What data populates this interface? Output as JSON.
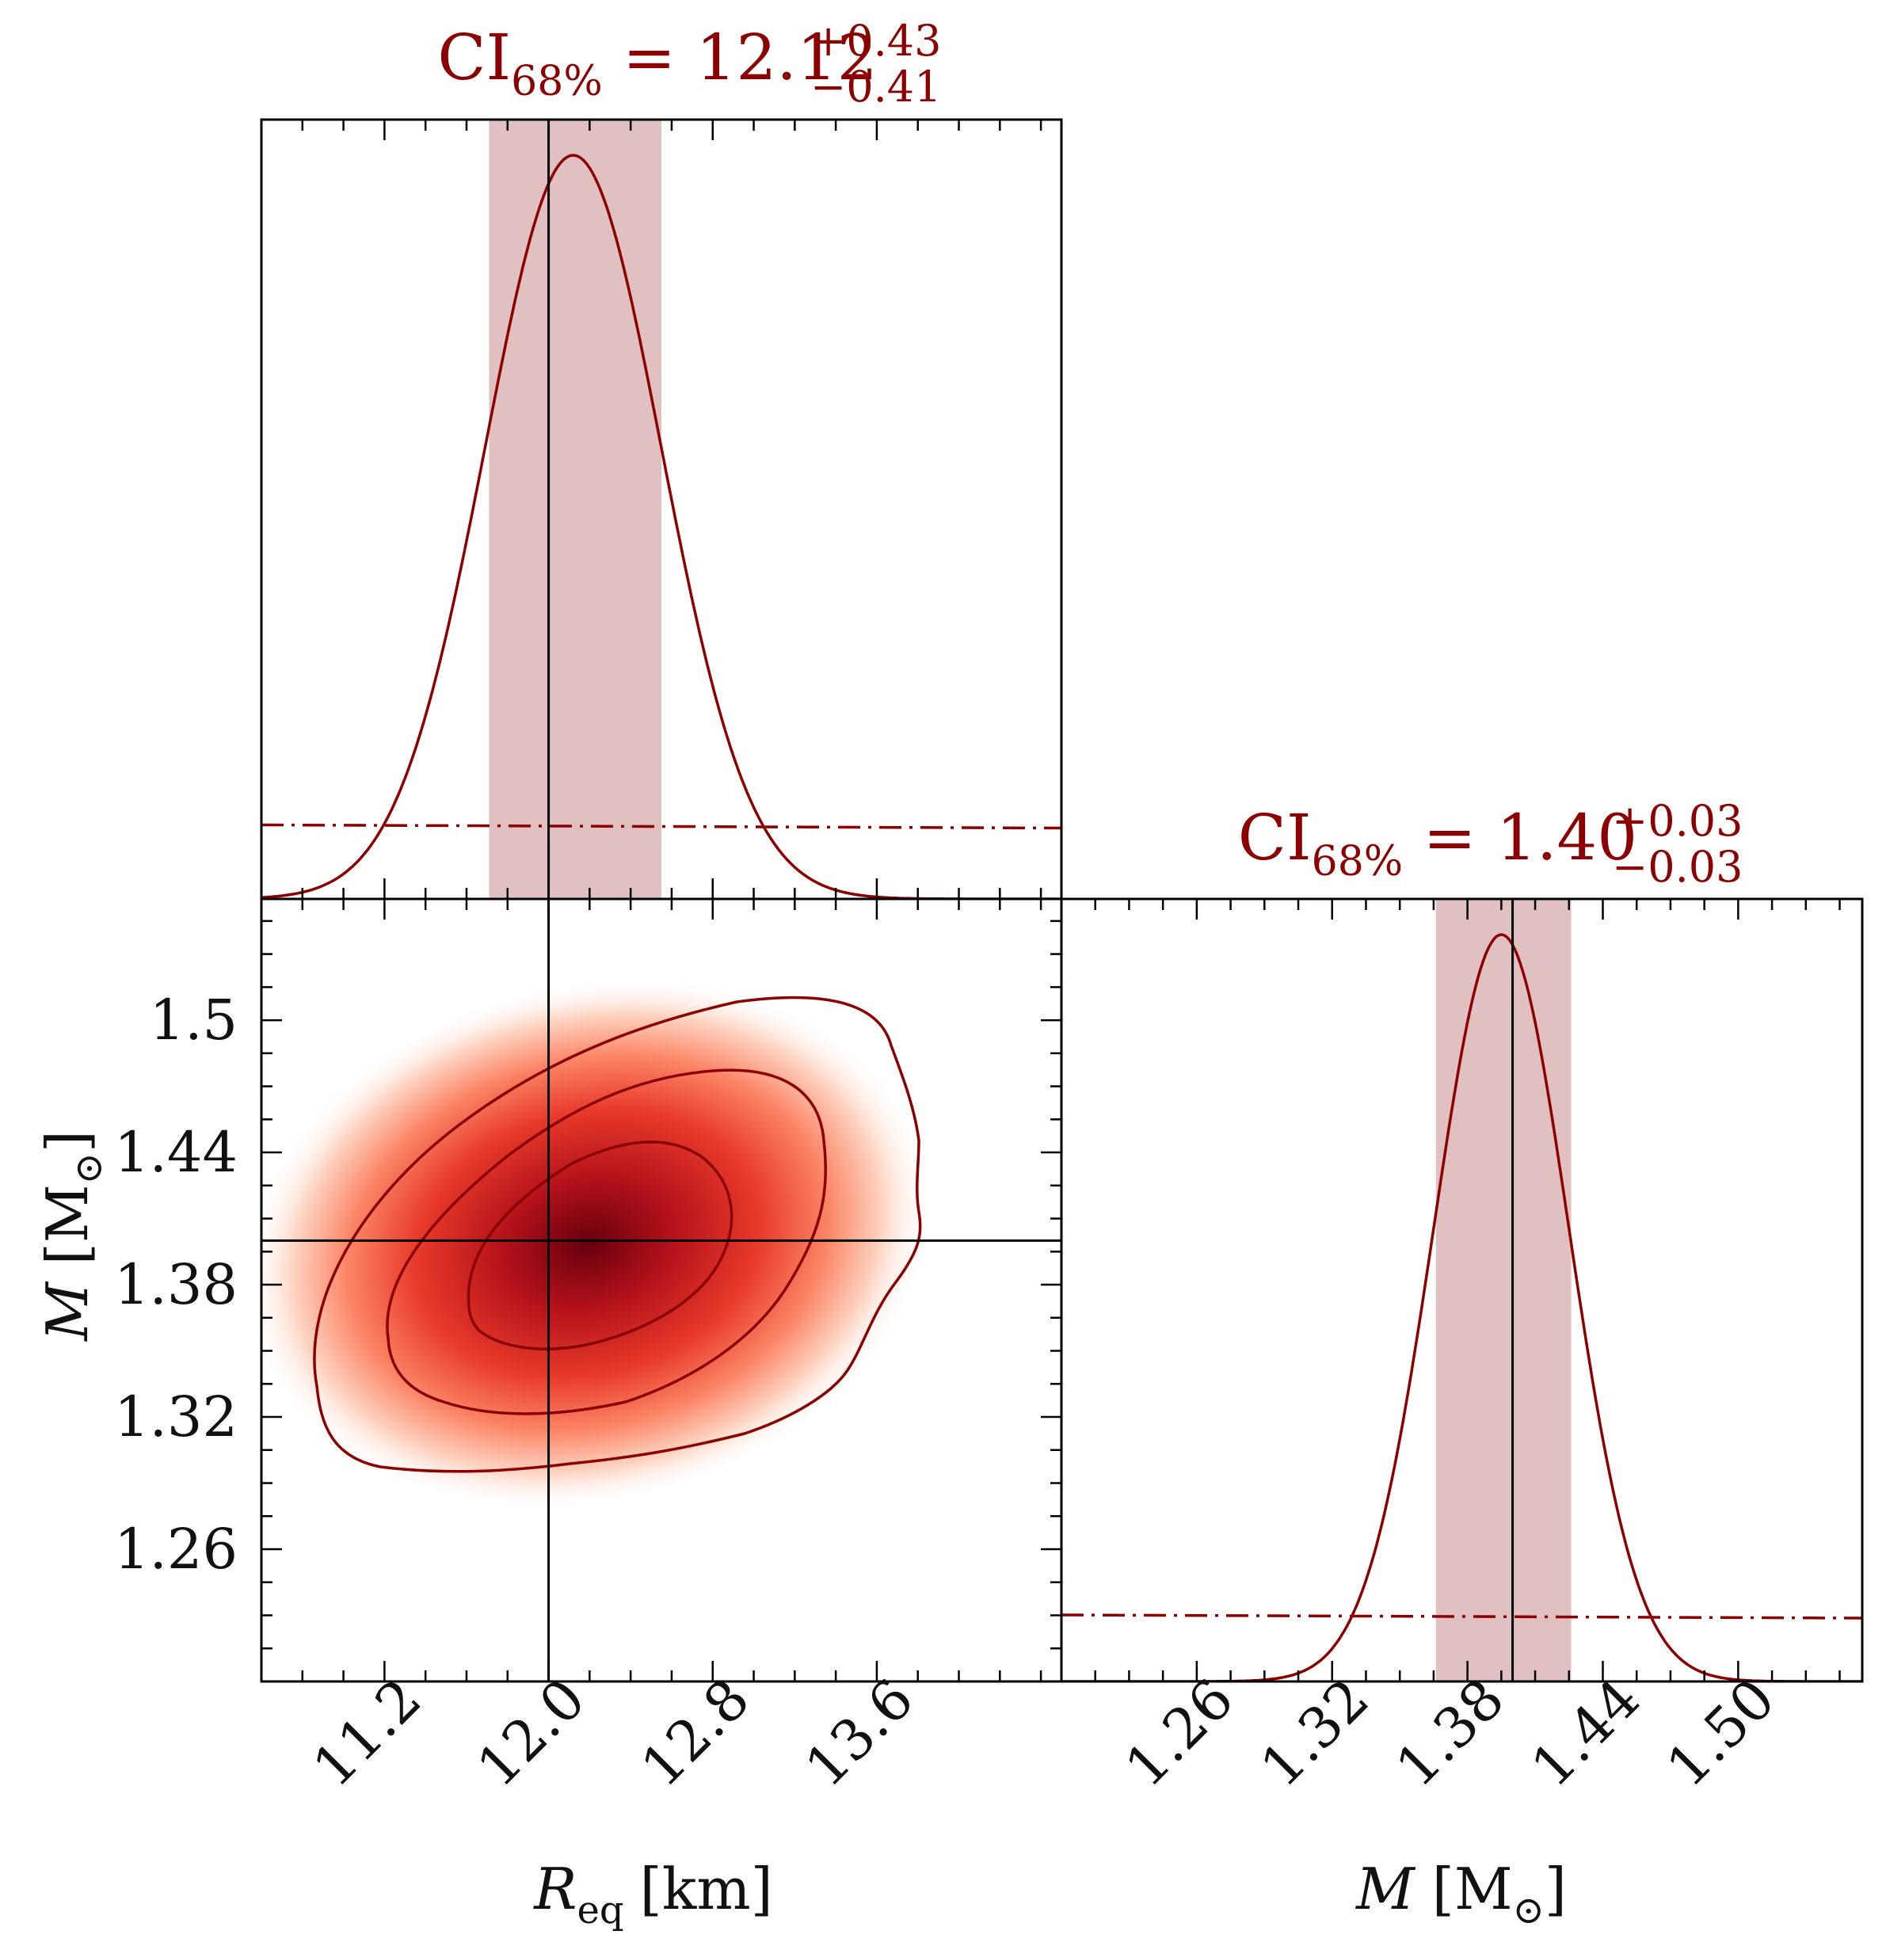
{
  "chart_data": {
    "type": "corner",
    "parameters": {
      "radius": {
        "label_main": "R",
        "label_sub": "eq",
        "label_unit": "[km]",
        "ticks": [
          "11.2",
          "12.0",
          "12.8",
          "13.6"
        ],
        "tick_values": [
          11.2,
          12.0,
          12.8,
          13.6
        ],
        "range": [
          10.6,
          14.5
        ],
        "truth": 12.0
      },
      "mass": {
        "label_main": "M",
        "label_unit_open": "[M",
        "label_unit_sub": "⊙",
        "label_unit_close": "]",
        "ticks": [
          "1.26",
          "1.32",
          "1.38",
          "1.44",
          "1.50"
        ],
        "tick_values": [
          1.26,
          1.32,
          1.38,
          1.44,
          1.5
        ],
        "ytick_labels": [
          "1.26",
          "1.32",
          "1.38",
          "1.44",
          "1.5"
        ],
        "range": [
          1.2,
          1.555
        ],
        "truth": 1.4
      }
    },
    "marginals": [
      {
        "parameter": "radius",
        "ci_label": "CI",
        "ci_sub": "68%",
        "ci_eq": " = 12.12",
        "ci_plus": "+0.43",
        "ci_minus": "−0.41",
        "median": 12.12,
        "ci": [
          11.71,
          12.55
        ],
        "mu": 12.12,
        "sigma": 0.43,
        "prior_level": 0.095
      },
      {
        "parameter": "mass",
        "ci_label": "CI",
        "ci_sub": "68%",
        "ci_eq": " = 1.40",
        "ci_plus": "+0.03",
        "ci_minus": "−0.03",
        "median": 1.395,
        "ci": [
          1.366,
          1.426
        ],
        "mu": 1.395,
        "sigma": 0.03,
        "prior_level": 0.085
      }
    ],
    "joint": {
      "center": [
        12.12,
        1.392
      ],
      "contour_levels": [
        "inner",
        "middle",
        "outer"
      ],
      "truth_lines": {
        "x": 12.0,
        "y": 1.4
      }
    },
    "colors": {
      "line": "#8b0000",
      "band": "#e1c0c2",
      "truth": "#000000"
    }
  }
}
